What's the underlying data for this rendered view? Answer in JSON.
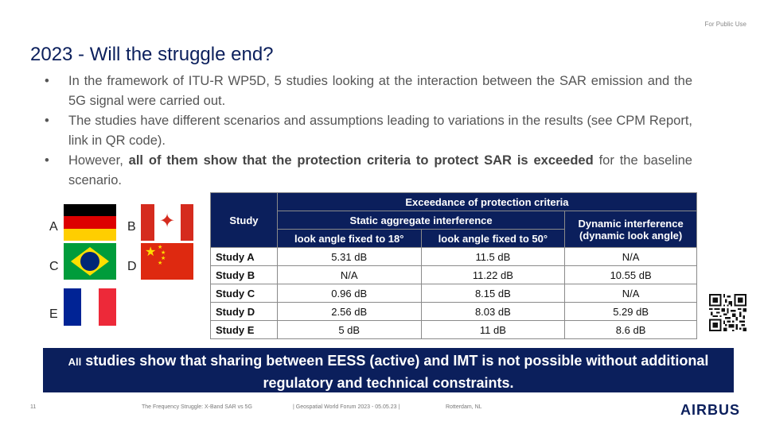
{
  "classification": "For Public Use",
  "title": "2023 - Will the struggle end?",
  "bullets": [
    {
      "text_before": "In the framework of ITU-R WP5D, 5 studies looking at the interaction between the SAR emission and the 5G signal were carried out.",
      "bold": "",
      "text_after": ""
    },
    {
      "text_before": "The studies have different scenarios and assumptions leading to variations in the results (see CPM Report, link in QR code).",
      "bold": "",
      "text_after": ""
    },
    {
      "text_before": "However, ",
      "bold": "all of them show that the protection criteria to protect SAR is exceeded",
      "text_after": " for the baseline scenario."
    }
  ],
  "bullet_char": "•",
  "flags": {
    "a": {
      "letter": "A",
      "country": "germany",
      "colors": [
        "#000000",
        "#dd0000",
        "#ffce00"
      ]
    },
    "b": {
      "letter": "B",
      "country": "canada",
      "colors": [
        "#d52b1e",
        "#ffffff"
      ],
      "leaf": "✦"
    },
    "c": {
      "letter": "C",
      "country": "brazil",
      "colors": [
        "#009c3b",
        "#ffdf00",
        "#002776"
      ]
    },
    "d": {
      "letter": "D",
      "country": "china",
      "colors": [
        "#de2910",
        "#ffde00"
      ],
      "star": "★"
    },
    "e": {
      "letter": "E",
      "country": "france",
      "colors": [
        "#002395",
        "#ffffff",
        "#ed2939"
      ]
    }
  },
  "table": {
    "study_header": "Study",
    "group_header": "Exceedance of protection criteria",
    "static_header": "Static aggregate interference",
    "dynamic_header": "Dynamic interference (dynamic look angle)",
    "col18_header": "look angle fixed to 18°",
    "col50_header": "look angle fixed to 50°",
    "rows": [
      {
        "study": "Study A",
        "a18": "5.31 dB",
        "a50": "11.5 dB",
        "dyn": "N/A"
      },
      {
        "study": "Study B",
        "a18": "N/A",
        "a50": "11.22 dB",
        "dyn": "10.55 dB"
      },
      {
        "study": "Study C",
        "a18": "0.96 dB",
        "a50": "8.15 dB",
        "dyn": "N/A"
      },
      {
        "study": "Study D",
        "a18": "2.56 dB",
        "a50": "8.03 dB",
        "dyn": "5.29 dB"
      },
      {
        "study": "Study E",
        "a18": "5 dB",
        "a50": "11 dB",
        "dyn": "8.6 dB"
      }
    ]
  },
  "qr_code": "qr-code-icon",
  "banner": {
    "lead": "All",
    "text": " studies show that sharing between EESS (active) and IMT is not possible without additional regulatory and technical constraints."
  },
  "footer": {
    "page_number": "11",
    "talk_title": "The Frequency Struggle: X-Band SAR vs 5G",
    "event": "| Geospatial World Forum 2023 - 05.05.23 |",
    "location": "Rotterdam, NL"
  },
  "logo": "AIRBUS",
  "colors": {
    "navy": "#0b1f5c",
    "text": "#555555"
  }
}
